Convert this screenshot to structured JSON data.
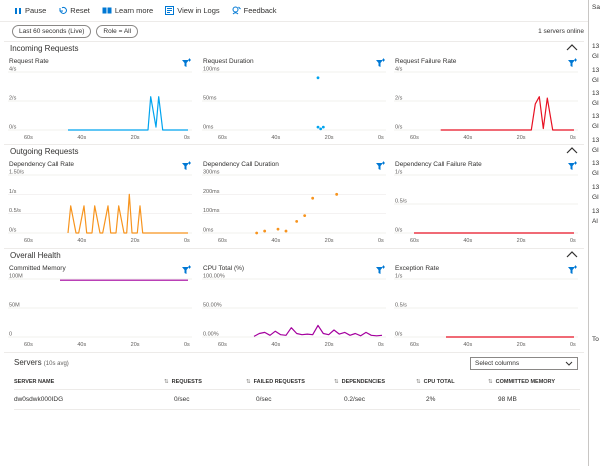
{
  "toolbar": {
    "items": [
      {
        "label": "Pause",
        "icon": "pause-icon"
      },
      {
        "label": "Reset",
        "icon": "reset-icon"
      },
      {
        "label": "Learn more",
        "icon": "learn-more-icon"
      },
      {
        "label": "View in Logs",
        "icon": "logs-icon"
      },
      {
        "label": "Feedback",
        "icon": "feedback-icon"
      }
    ]
  },
  "filters": {
    "time_range": "Last 60 seconds (Live)",
    "role": "Role = All",
    "servers_online": "1 servers online"
  },
  "colors": {
    "accent": "#0078d4",
    "request_rate": "#00a4ef",
    "failure": "#e81123",
    "dependency": "#f7941e",
    "memory_cpu": "#a4009e"
  },
  "right_panel": {
    "lines": [
      "Sa",
      "13",
      "GI",
      "13",
      "GI",
      "13",
      "GI",
      "13",
      "GI",
      "13",
      "GI",
      "13",
      "GI",
      "13",
      "GI",
      "13",
      "Al",
      "To"
    ]
  },
  "sections": [
    {
      "title": "Incoming Requests",
      "charts": [
        {
          "title": "Request Rate",
          "type": "line",
          "color": "#00a4ef",
          "ylabels": [
            "4/s",
            "2/s",
            "0/s"
          ],
          "ymax": 4,
          "x": [
            -45,
            -15,
            -14,
            -12,
            -11,
            -9.5,
            -8,
            0
          ],
          "y": [
            0,
            0,
            2.3,
            0.2,
            2.3,
            0,
            0,
            0
          ]
        },
        {
          "title": "Request Duration",
          "type": "scatter",
          "color": "#00a4ef",
          "ylabels": [
            "100ms",
            "50ms",
            "0ms"
          ],
          "ymax": 100,
          "x": [
            -24,
            -24,
            -23,
            -22
          ],
          "y": [
            90,
            5,
            2,
            5
          ]
        },
        {
          "title": "Request Failure Rate",
          "type": "line",
          "color": "#e81123",
          "ylabels": [
            "4/s",
            "2/s",
            "0/s"
          ],
          "ymax": 4,
          "x": [
            -50,
            -16,
            -14.5,
            -13,
            -11.5,
            -10,
            -8,
            0
          ],
          "y": [
            0,
            0,
            1.8,
            2.3,
            0.1,
            2.2,
            0,
            0
          ]
        }
      ]
    },
    {
      "title": "Outgoing Requests",
      "charts": [
        {
          "title": "Dependency Call Rate",
          "type": "line",
          "color": "#f7941e",
          "ylabels": [
            "1.50/s",
            "1/s",
            "0.5/s",
            "0/s"
          ],
          "ymax": 1.5,
          "x": [
            -45,
            -44,
            -42,
            -41,
            -39,
            -38,
            -36,
            -35,
            -33,
            -32,
            -30,
            -29,
            -27,
            -26,
            -24,
            -23,
            -22,
            -21,
            -19,
            -18,
            -17,
            -16,
            0
          ],
          "y": [
            0,
            0.7,
            0,
            0,
            0.7,
            0,
            0,
            0.7,
            0,
            0,
            0.7,
            0,
            0,
            0.7,
            0,
            0,
            1,
            0,
            0,
            0.7,
            0,
            0,
            0
          ]
        },
        {
          "title": "Dependency Call Duration",
          "type": "scatter",
          "color": "#f7941e",
          "ylabels": [
            "300ms",
            "200ms",
            "100ms",
            "0ms"
          ],
          "ymax": 300,
          "x": [
            -47,
            -44,
            -39,
            -36,
            -32,
            -29,
            -26,
            -17
          ],
          "y": [
            0,
            10,
            20,
            10,
            60,
            90,
            180,
            200
          ]
        },
        {
          "title": "Dependency Call Failure Rate",
          "type": "line",
          "color": "#e81123",
          "ylabels": [
            "1/s",
            "0.5/s",
            "0/s"
          ],
          "ymax": 1,
          "x": [
            -60,
            0
          ],
          "y": [
            0,
            0
          ]
        }
      ]
    },
    {
      "title": "Overall Health",
      "charts": [
        {
          "title": "Committed Memory",
          "type": "line",
          "color": "#a4009e",
          "ylabels": [
            "100M",
            "50M",
            "0"
          ],
          "ymax": 100,
          "x": [
            -48,
            0
          ],
          "y": [
            98,
            98
          ]
        },
        {
          "title": "CPU Total (%)",
          "type": "line",
          "color": "#a4009e",
          "ylabels": [
            "100.00%",
            "50.00%",
            "0.00%"
          ],
          "ymax": 100,
          "x": [
            -48,
            -46,
            -44,
            -42,
            -40,
            -38,
            -36,
            -34,
            -32,
            -30,
            -28,
            -26,
            -24,
            -22,
            -20,
            -18,
            -16,
            -14,
            -12,
            -10,
            -8,
            -6,
            -4,
            -2,
            0
          ],
          "y": [
            1,
            6,
            8,
            3,
            10,
            4,
            3,
            16,
            6,
            4,
            5,
            4,
            20,
            6,
            4,
            12,
            5,
            8,
            3,
            6,
            2,
            8,
            3,
            2,
            3
          ]
        },
        {
          "title": "Exception Rate",
          "type": "line",
          "color": "#e81123",
          "ylabels": [
            "1/s",
            "0.5/s",
            "0/s"
          ],
          "ymax": 1,
          "x": [
            -48,
            0
          ],
          "y": [
            0,
            0
          ]
        }
      ]
    }
  ],
  "xlabels": [
    "60s",
    "40s",
    "20s",
    "0s"
  ],
  "servers": {
    "title": "Servers",
    "subtitle": "(10s avg)",
    "select_columns": "Select columns",
    "columns": [
      "SERVER NAME",
      "REQUESTS",
      "FAILED REQUESTS",
      "DEPENDENCIES",
      "CPU TOTAL",
      "COMMITTED MEMORY"
    ],
    "rows": [
      [
        "dw0sdwk000IDG",
        "0/sec",
        "0/sec",
        "0.2/sec",
        "2%",
        "98 MB"
      ]
    ]
  }
}
